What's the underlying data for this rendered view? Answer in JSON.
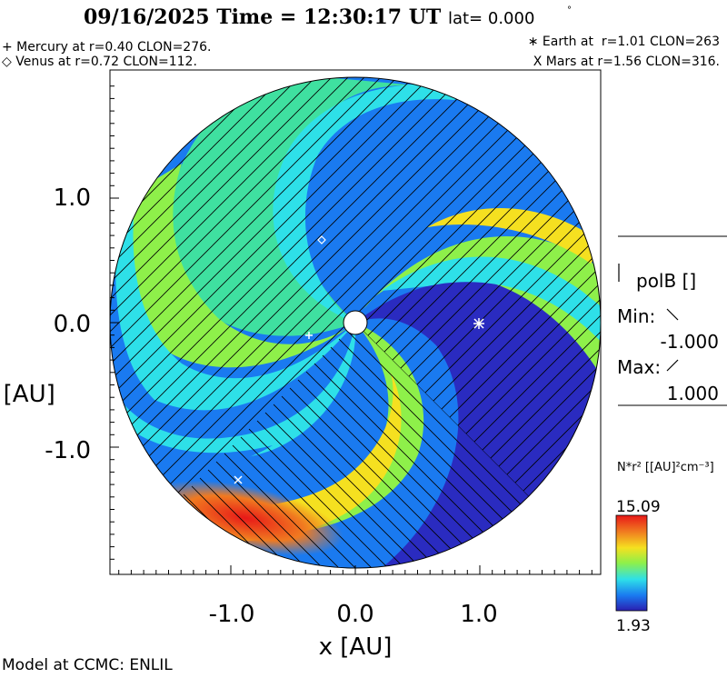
{
  "header": {
    "date": "09/16/2025",
    "time_label": "Time",
    "time": "12:30:17 UT",
    "lat_label": "lat=",
    "lat": "0.000"
  },
  "planets": {
    "mercury": "+ Mercury at r=0.40 CLON=276.",
    "venus": "◇ Venus at r=0.72 CLON=112.",
    "earth": "∗ Earth at  r=1.01 CLON=263",
    "mars": "X Mars at r=1.56 CLON=316."
  },
  "polarity_legend": {
    "title": "polB []",
    "min_label": "Min:",
    "min_value": "-1.000",
    "max_label": "Max:",
    "max_value": "1.000"
  },
  "colorbar": {
    "quantity": "N*r² [[AU]²cm⁻³]",
    "max": "15.09",
    "min": "1.93"
  },
  "footer": "Model at CCMC: ENLIL",
  "chart_data": {
    "type": "heatmap",
    "title": "09/16/2025 Time = 12:30:17 UT lat= 0.000°",
    "xlabel": "x [AU]",
    "ylabel": "y [AU]",
    "xlim": [
      -2,
      2
    ],
    "ylim": [
      -2,
      2
    ],
    "xticks": [
      "-1.0",
      "0.0",
      "1.0"
    ],
    "yticks": [
      "1.0",
      "0.0",
      "-1.0"
    ],
    "value_range": [
      1.93,
      15.09
    ],
    "colormap": [
      "#2a1fb0",
      "#1a7af0",
      "#2ee0e8",
      "#8ef04a",
      "#f5e020",
      "#f07a20",
      "#e81818"
    ],
    "markers": [
      {
        "name": "Mercury",
        "symbol": "+",
        "x": -0.38,
        "y": -0.1
      },
      {
        "name": "Venus",
        "symbol": "diamond",
        "x": -0.27,
        "y": 0.65
      },
      {
        "name": "Earth",
        "symbol": "*",
        "x": 1.0,
        "y": 0.0
      },
      {
        "name": "Mars",
        "symbol": "x",
        "x": -0.95,
        "y": -1.27
      }
    ]
  }
}
